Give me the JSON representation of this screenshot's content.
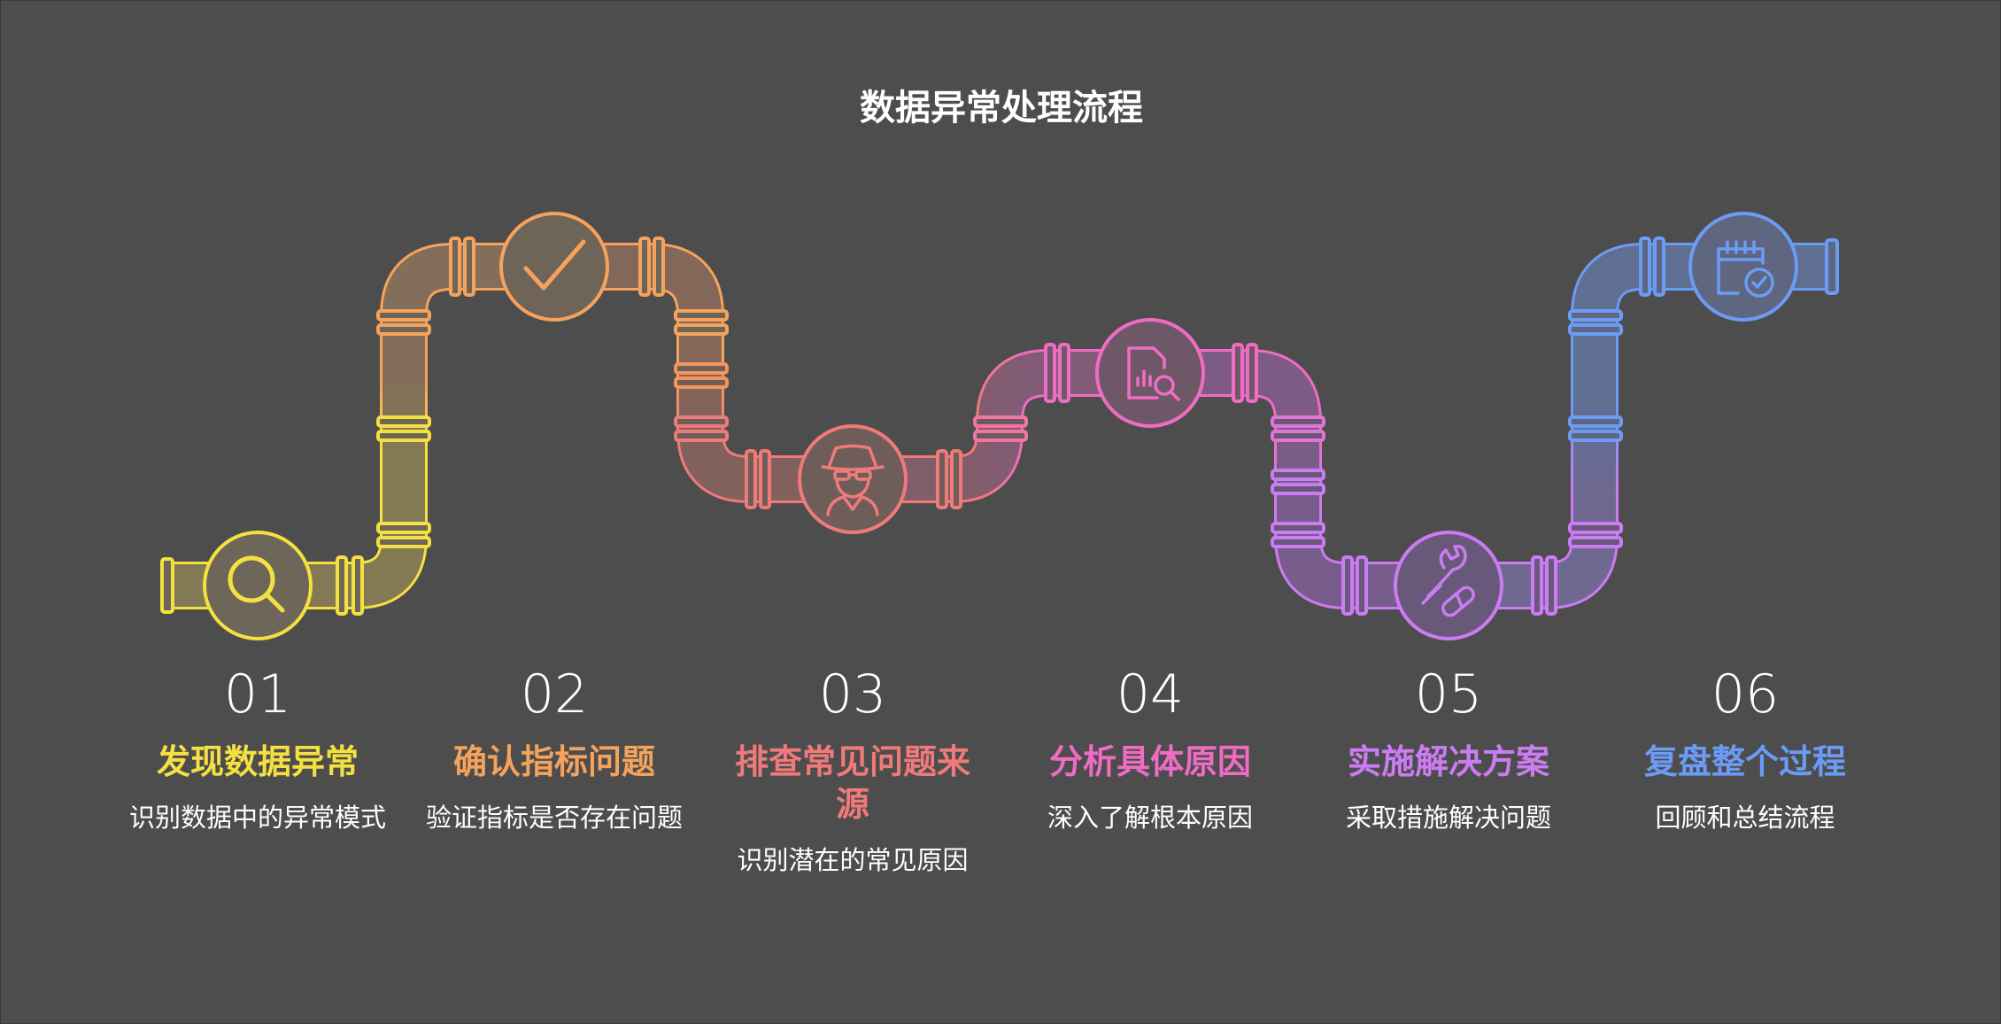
{
  "title": "数据异常处理流程",
  "steps": [
    {
      "number": "01",
      "title": "发现数据异常",
      "description": "识别数据中的异常模式",
      "color": "#f5e042",
      "icon": "magnifier-icon"
    },
    {
      "number": "02",
      "title": "确认指标问题",
      "description": "验证指标是否存在问题",
      "color": "#f5a35c",
      "icon": "checkmark-icon"
    },
    {
      "number": "03",
      "title": "排查常见问题来源",
      "description": "识别潜在的常见原因",
      "color": "#f07a7a",
      "icon": "detective-icon"
    },
    {
      "number": "04",
      "title": "分析具体原因",
      "description": "深入了解根本原因",
      "color": "#f06cc4",
      "icon": "report-analysis-icon"
    },
    {
      "number": "05",
      "title": "实施解决方案",
      "description": "采取措施解决问题",
      "color": "#cc7cf2",
      "icon": "wrench-pill-icon"
    },
    {
      "number": "06",
      "title": "复盘整个过程",
      "description": "回顾和总结流程",
      "color": "#6b9cf5",
      "icon": "calendar-check-icon"
    }
  ]
}
